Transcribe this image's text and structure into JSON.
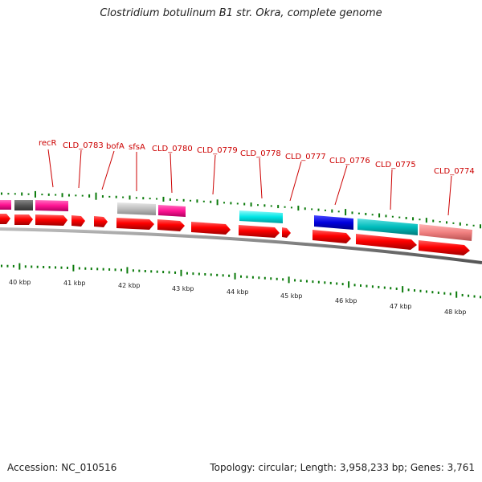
{
  "title": "Clostridium botulinum B1 str. Okra, complete genome",
  "accession": "Accession: NC_010516",
  "summary": "Topology: circular; Length: 3,958,233 bp; Genes: 3,761",
  "gene_labels": [
    "recR",
    "CLD_0783",
    "bofA",
    "sfsA",
    "CLD_0780",
    "CLD_0779",
    "CLD_0778",
    "CLD_0777",
    "CLD_0776",
    "CLD_0775",
    "CLD_0774"
  ],
  "kbp_labels": [
    "40 kbp",
    "41 kbp",
    "42 kbp",
    "43 kbp",
    "44 kbp",
    "45 kbp",
    "46 kbp",
    "47 kbp",
    "48 kbp"
  ],
  "colors": {
    "forward_cds": "#ff0000",
    "backbone": "#777777",
    "gc_tick": "#0a7a0a",
    "label": "#cc0000",
    "magenta": "#ff1493",
    "dark_gray": "#555555",
    "light_gray": "#bdbdbd",
    "cyan": "#00e5e5",
    "blue": "#0000dd",
    "teal": "#00bcbc",
    "salmon": "#f08080"
  }
}
